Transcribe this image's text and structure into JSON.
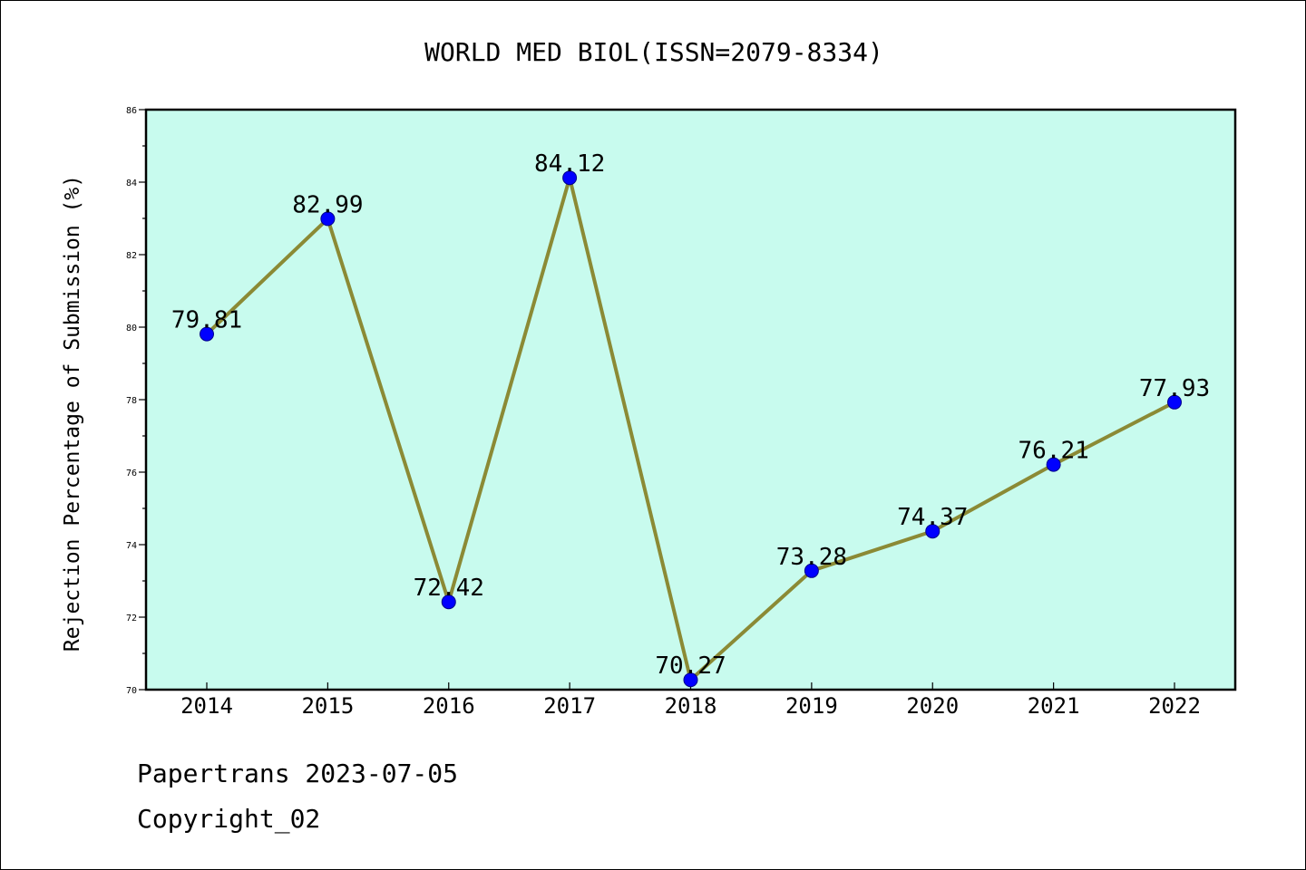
{
  "chart_data": {
    "type": "line",
    "title": "WORLD MED BIOL(ISSN=2079-8334)",
    "xlabel": "",
    "ylabel": "Rejection Percentage of Submission (%)",
    "categories": [
      "2014",
      "2015",
      "2016",
      "2017",
      "2018",
      "2019",
      "2020",
      "2021",
      "2022"
    ],
    "values": [
      79.81,
      82.99,
      72.42,
      84.12,
      70.27,
      73.28,
      74.37,
      76.21,
      77.93
    ],
    "data_labels": [
      "79.81",
      "82.99",
      "72.42",
      "84.12",
      "70.27",
      "73.28",
      "74.37",
      "76.21",
      "77.93"
    ],
    "ylim": [
      70,
      86
    ],
    "yticks": [
      "70",
      "72",
      "74",
      "76",
      "78",
      "80",
      "82",
      "84",
      "86"
    ],
    "grid": false,
    "legend": "none",
    "colors": {
      "plot_background": "#c8fbee",
      "line": "#8b8a35",
      "marker": "#0000ff",
      "axis": "#000000"
    }
  },
  "footer": {
    "stamp": "Papertrans 2023-07-05",
    "copyright": "Copyright_02"
  }
}
